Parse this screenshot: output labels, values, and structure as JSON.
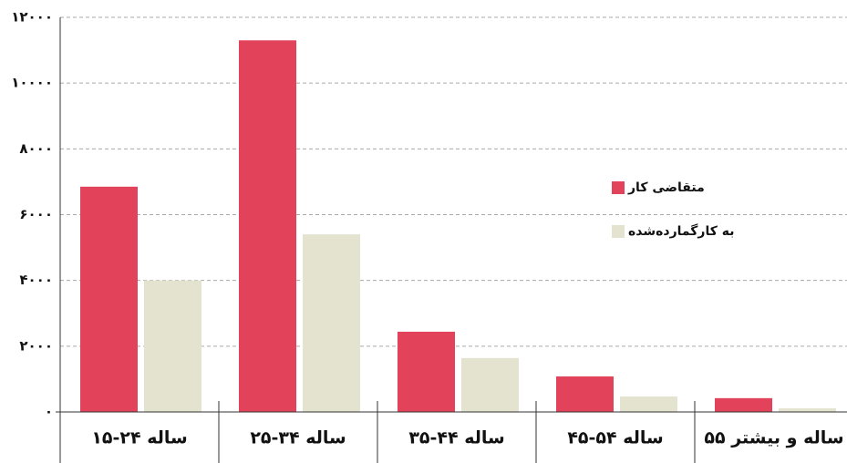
{
  "chart_data": {
    "type": "bar",
    "categories": [
      "۱۵-۲۴ ساله",
      "۲۵-۳۴ ساله",
      "۳۵-۴۴ ساله",
      "۴۵-۵۴ ساله",
      "۵۵ ساله و بیشتر"
    ],
    "series": [
      {
        "name": "متقاضی کار",
        "color": "#e2435a",
        "values": [
          6850,
          11300,
          2440,
          1080,
          420
        ]
      },
      {
        "name": "به کارگمارده‌شده",
        "color": "#e3e3cf",
        "values": [
          4000,
          5400,
          1640,
          470,
          110
        ]
      }
    ],
    "ylim": [
      0,
      12000
    ],
    "yticks": [
      {
        "value": 0,
        "label": "۰"
      },
      {
        "value": 2000,
        "label": "۲۰۰۰"
      },
      {
        "value": 4000,
        "label": "۴۰۰۰"
      },
      {
        "value": 6000,
        "label": "۶۰۰۰"
      },
      {
        "value": 8000,
        "label": "۸۰۰۰"
      },
      {
        "value": 10000,
        "label": "۱۰۰۰۰"
      },
      {
        "value": 12000,
        "label": "۱۲۰۰۰"
      }
    ],
    "grid": true
  }
}
